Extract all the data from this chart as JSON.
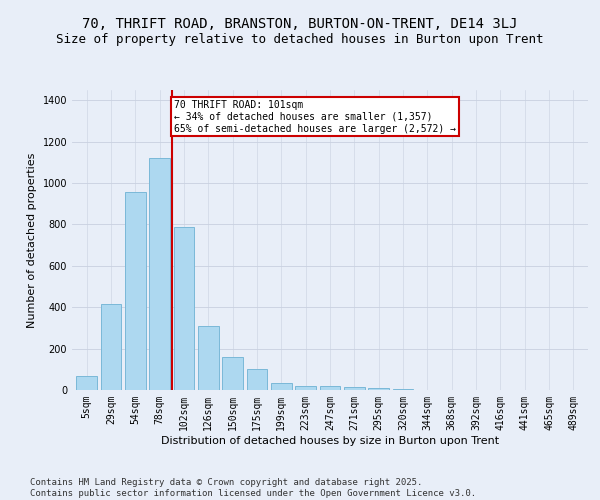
{
  "title": "70, THRIFT ROAD, BRANSTON, BURTON-ON-TRENT, DE14 3LJ",
  "subtitle": "Size of property relative to detached houses in Burton upon Trent",
  "xlabel": "Distribution of detached houses by size in Burton upon Trent",
  "ylabel": "Number of detached properties",
  "footer1": "Contains HM Land Registry data © Crown copyright and database right 2025.",
  "footer2": "Contains public sector information licensed under the Open Government Licence v3.0.",
  "categories": [
    "5sqm",
    "29sqm",
    "54sqm",
    "78sqm",
    "102sqm",
    "126sqm",
    "150sqm",
    "175sqm",
    "199sqm",
    "223sqm",
    "247sqm",
    "271sqm",
    "295sqm",
    "320sqm",
    "344sqm",
    "368sqm",
    "392sqm",
    "416sqm",
    "441sqm",
    "465sqm",
    "489sqm"
  ],
  "values": [
    70,
    415,
    955,
    1120,
    790,
    310,
    160,
    100,
    35,
    20,
    18,
    15,
    10,
    5,
    0,
    0,
    0,
    0,
    0,
    0,
    0
  ],
  "bar_color": "#add8f0",
  "bar_edge_color": "#7ab8d8",
  "vline_color": "#cc0000",
  "annotation_box_edge": "#cc0000",
  "ylim": [
    0,
    1450
  ],
  "bg_color": "#e8eef8",
  "grid_color": "#c8d0e0",
  "title_fontsize": 10,
  "subtitle_fontsize": 9,
  "axis_label_fontsize": 8,
  "tick_fontsize": 7,
  "footer_fontsize": 6.5
}
